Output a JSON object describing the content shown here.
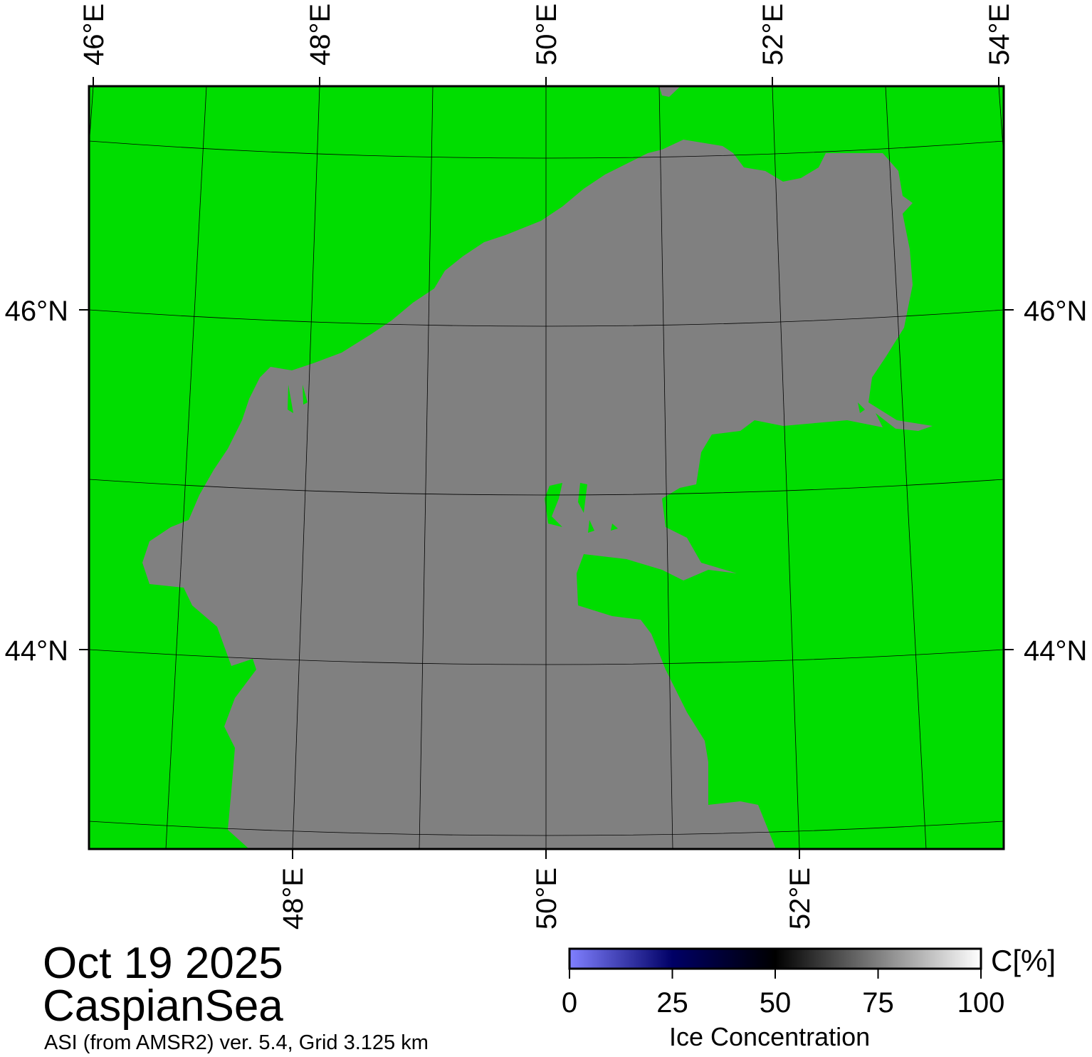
{
  "map": {
    "land_color": "#00dd00",
    "sea_color": "#808080",
    "graticule_color": "#000000",
    "top_lon_labels": [
      "46°E",
      "48°E",
      "50°E",
      "52°E",
      "54°E"
    ],
    "top_lon_values": [
      46,
      48,
      50,
      52,
      54
    ],
    "bottom_lon_labels": [
      "48°E",
      "50°E",
      "52°E"
    ],
    "bottom_lon_values": [
      48,
      50,
      52
    ],
    "lat_labels": [
      "46°N",
      "44°N"
    ],
    "lat_values": [
      46,
      44
    ],
    "meridians": [
      46,
      47,
      48,
      49,
      50,
      51,
      52,
      53,
      54
    ],
    "parallels": [
      47,
      46,
      45,
      44,
      43
    ]
  },
  "title": {
    "date": "Oct 19 2025",
    "region": "CaspianSea",
    "source": "ASI (from AMSR2) ver. 5.4,  Grid 3.125 km"
  },
  "colorbar": {
    "unit": "C[%]",
    "label": "Ice Concentration",
    "ticks": [
      "0",
      "25",
      "50",
      "75",
      "100"
    ],
    "range": [
      0,
      100
    ],
    "stops": [
      {
        "value": 0,
        "color": "#8080ff"
      },
      {
        "value": 25,
        "color": "#000066"
      },
      {
        "value": 50,
        "color": "#000000"
      },
      {
        "value": 100,
        "color": "#ffffff"
      }
    ]
  }
}
